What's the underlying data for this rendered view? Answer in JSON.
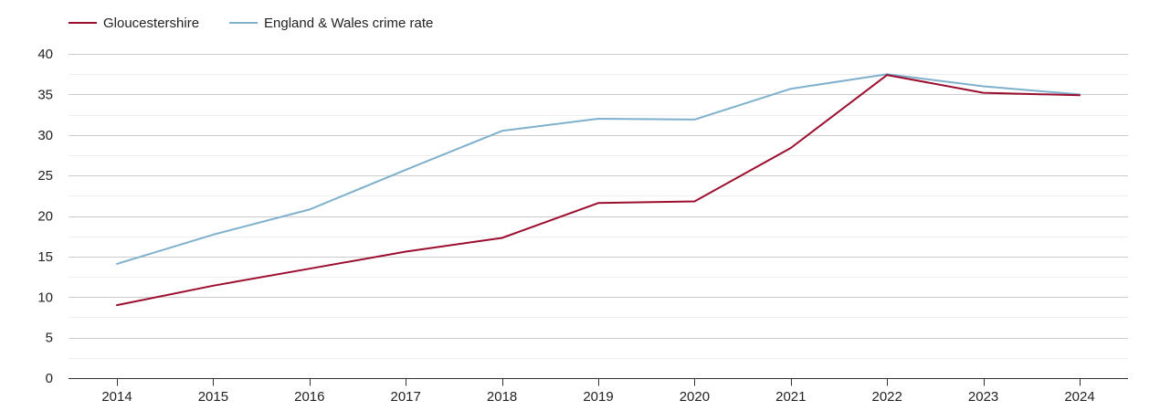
{
  "chart_data": {
    "type": "line",
    "title": "",
    "xlabel": "",
    "ylabel": "",
    "x": [
      2014,
      2015,
      2016,
      2017,
      2018,
      2019,
      2020,
      2021,
      2022,
      2023,
      2024
    ],
    "x_tick_labels": [
      "2014",
      "2015",
      "2016",
      "2017",
      "2018",
      "2019",
      "2020",
      "2021",
      "2022",
      "2023",
      "2024"
    ],
    "y_tick_labels": [
      "0",
      "5",
      "10",
      "15",
      "20",
      "25",
      "30",
      "35",
      "40"
    ],
    "y_ticks": [
      0,
      5,
      10,
      15,
      20,
      25,
      30,
      35,
      40
    ],
    "ylim": [
      0,
      40
    ],
    "minor_grid": true,
    "legend_position": "top-left",
    "series": [
      {
        "name": "Gloucestershire",
        "color": "#9b0d2e",
        "values": [
          9.0,
          11.4,
          13.5,
          15.6,
          17.3,
          21.6,
          21.8,
          28.4,
          37.4,
          35.2,
          34.9
        ]
      },
      {
        "name": "England & Wales crime rate",
        "color": "#7fb0cc",
        "values": [
          14.1,
          17.7,
          20.8,
          25.7,
          30.5,
          32.0,
          31.9,
          35.7,
          37.5,
          36.0,
          35.0
        ]
      }
    ]
  }
}
